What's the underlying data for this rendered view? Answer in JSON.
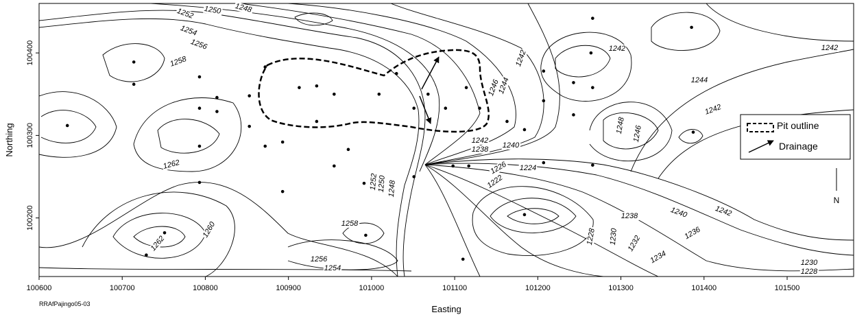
{
  "x_label": "Easting",
  "y_label": "Northing",
  "footnote": "RRAfPajingo05-03",
  "north": "N",
  "xlim": [
    100600,
    101580
  ],
  "ylim": [
    100129,
    100460
  ],
  "xticks": [
    100600,
    100700,
    100800,
    100900,
    101000,
    101100,
    101200,
    101300,
    101400,
    101500
  ],
  "yticks": [
    100200,
    100300,
    100400
  ],
  "legend": [
    "Pit outline",
    "Drainage"
  ],
  "contour_labels": [
    1252,
    1250,
    1248,
    1254,
    1256,
    1258,
    1262,
    1262,
    1260,
    1258,
    1256,
    1254,
    1252,
    1250,
    1248,
    1242,
    1238,
    1240,
    1226,
    1224,
    1222,
    1228,
    1230,
    1232,
    1234,
    1236,
    1238,
    1240,
    1242,
    1230,
    1228,
    1242,
    1244,
    1246,
    1248,
    1246,
    1242,
    1244,
    1242,
    1242
  ],
  "points": {
    "x": [
      100634,
      100714,
      100714,
      100793,
      100793,
      100793,
      100793,
      100814,
      100814,
      100751,
      100729,
      100872,
      100853,
      100853,
      100872,
      100893,
      100893,
      100913,
      100934,
      100934,
      100955,
      100955,
      100972,
      100991,
      100993,
      101009,
      101030,
      101051,
      101051,
      101068,
      101089,
      101098,
      101110,
      101117,
      101114,
      101130,
      101163,
      101184,
      101184,
      101207,
      101207,
      101207,
      101243,
      101243,
      101264,
      101266,
      101266,
      101266,
      101387,
      101385
    ],
    "y": [
      100312,
      100389,
      100362,
      100371,
      100333,
      100287,
      100243,
      100346,
      100329,
      100182,
      100155,
      100383,
      100348,
      100311,
      100287,
      100292,
      100232,
      100358,
      100360,
      100317,
      100350,
      100263,
      100283,
      100242,
      100179,
      100350,
      100375,
      100333,
      100250,
      100350,
      100333,
      100263,
      100150,
      100263,
      100358,
      100333,
      100317,
      100307,
      100204,
      100378,
      100342,
      100267,
      100364,
      100325,
      100400,
      100442,
      100358,
      100264,
      100304,
      100431
    ]
  }
}
